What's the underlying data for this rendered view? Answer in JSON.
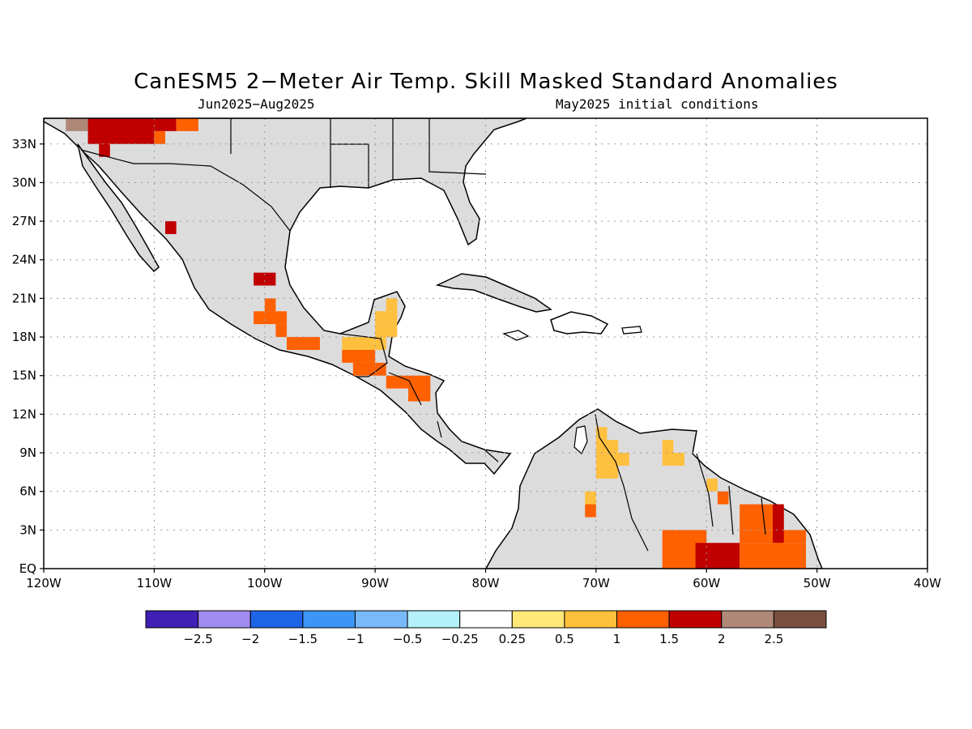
{
  "title": "CanESM5 2−Meter Air Temp. Skill Masked Standard Anomalies",
  "subtitle_left": "Jun2025−Aug2025",
  "subtitle_right": "May2025 initial conditions",
  "map": {
    "lon_range": [
      -120,
      -40
    ],
    "lat_range": [
      0,
      35
    ],
    "lon_ticks": [
      {
        "value": -120,
        "label": "120W"
      },
      {
        "value": -110,
        "label": "110W"
      },
      {
        "value": -100,
        "label": "100W"
      },
      {
        "value": -90,
        "label": "90W"
      },
      {
        "value": -80,
        "label": "80W"
      },
      {
        "value": -70,
        "label": "70W"
      },
      {
        "value": -60,
        "label": "60W"
      },
      {
        "value": -50,
        "label": "50W"
      },
      {
        "value": -40,
        "label": "40W"
      }
    ],
    "lat_ticks": [
      {
        "value": 0,
        "label": "EQ"
      },
      {
        "value": 3,
        "label": "3N"
      },
      {
        "value": 6,
        "label": "6N"
      },
      {
        "value": 9,
        "label": "9N"
      },
      {
        "value": 12,
        "label": "12N"
      },
      {
        "value": 15,
        "label": "15N"
      },
      {
        "value": 18,
        "label": "18N"
      },
      {
        "value": 21,
        "label": "21N"
      },
      {
        "value": 24,
        "label": "24N"
      },
      {
        "value": 27,
        "label": "27N"
      },
      {
        "value": 30,
        "label": "30N"
      },
      {
        "value": 33,
        "label": "33N"
      }
    ],
    "grid": true,
    "land_color": "#dcdcdc",
    "anomaly_cells": [
      {
        "lon": -118,
        "lat": 34,
        "w": 2,
        "h": 1,
        "color": "#b08878"
      },
      {
        "lon": -116,
        "lat": 33,
        "w": 6,
        "h": 2,
        "color": "#c00000"
      },
      {
        "lon": -110,
        "lat": 34,
        "w": 2,
        "h": 1,
        "color": "#c00000"
      },
      {
        "lon": -108,
        "lat": 34,
        "w": 2,
        "h": 1,
        "color": "#ff6000"
      },
      {
        "lon": -110,
        "lat": 33,
        "w": 1,
        "h": 1,
        "color": "#ff6000"
      },
      {
        "lon": -115,
        "lat": 32,
        "w": 1,
        "h": 1,
        "color": "#c00000"
      },
      {
        "lon": -109,
        "lat": 26,
        "w": 1,
        "h": 1,
        "color": "#c00000"
      },
      {
        "lon": -101,
        "lat": 22,
        "w": 2,
        "h": 1,
        "color": "#c00000"
      },
      {
        "lon": -100,
        "lat": 20,
        "w": 1,
        "h": 1,
        "color": "#ff6000"
      },
      {
        "lon": -101,
        "lat": 19,
        "w": 3,
        "h": 1,
        "color": "#ff6000"
      },
      {
        "lon": -99,
        "lat": 18,
        "w": 1,
        "h": 1,
        "color": "#ff6000"
      },
      {
        "lon": -98,
        "lat": 17,
        "w": 3,
        "h": 1,
        "color": "#ff6000"
      },
      {
        "lon": -89,
        "lat": 20,
        "w": 1,
        "h": 1,
        "color": "#ffc040"
      },
      {
        "lon": -90,
        "lat": 19,
        "w": 2,
        "h": 1,
        "color": "#ffc040"
      },
      {
        "lon": -90,
        "lat": 18,
        "w": 2,
        "h": 1,
        "color": "#ffc040"
      },
      {
        "lon": -93,
        "lat": 17,
        "w": 4,
        "h": 1,
        "color": "#ffc040"
      },
      {
        "lon": -93,
        "lat": 16,
        "w": 3,
        "h": 1,
        "color": "#ff6000"
      },
      {
        "lon": -92,
        "lat": 15,
        "w": 3,
        "h": 1,
        "color": "#ff6000"
      },
      {
        "lon": -89,
        "lat": 14,
        "w": 4,
        "h": 1,
        "color": "#ff6000"
      },
      {
        "lon": -87,
        "lat": 13,
        "w": 2,
        "h": 1,
        "color": "#ff6000"
      },
      {
        "lon": -70,
        "lat": 10,
        "w": 1,
        "h": 1,
        "color": "#ffc040"
      },
      {
        "lon": -70,
        "lat": 9,
        "w": 2,
        "h": 1,
        "color": "#ffc040"
      },
      {
        "lon": -70,
        "lat": 8,
        "w": 3,
        "h": 1,
        "color": "#ffc040"
      },
      {
        "lon": -70,
        "lat": 7,
        "w": 2,
        "h": 1,
        "color": "#ffc040"
      },
      {
        "lon": -64,
        "lat": 9,
        "w": 1,
        "h": 1,
        "color": "#ffc040"
      },
      {
        "lon": -64,
        "lat": 8,
        "w": 2,
        "h": 1,
        "color": "#ffc040"
      },
      {
        "lon": -71,
        "lat": 5,
        "w": 1,
        "h": 1,
        "color": "#ffc040"
      },
      {
        "lon": -71,
        "lat": 4,
        "w": 1,
        "h": 1,
        "color": "#ff6000"
      },
      {
        "lon": -60,
        "lat": 6,
        "w": 1,
        "h": 1,
        "color": "#ffc040"
      },
      {
        "lon": -59,
        "lat": 5,
        "w": 1,
        "h": 1,
        "color": "#ff6000"
      },
      {
        "lon": -57,
        "lat": 3,
        "w": 4,
        "h": 2,
        "color": "#ff6000"
      },
      {
        "lon": -57,
        "lat": 2,
        "w": 6,
        "h": 1,
        "color": "#ff6000"
      },
      {
        "lon": -54,
        "lat": 2,
        "w": 1,
        "h": 3,
        "color": "#c00000"
      },
      {
        "lon": -64,
        "lat": 0,
        "w": 4,
        "h": 3,
        "color": "#ff6000"
      },
      {
        "lon": -61,
        "lat": 0,
        "w": 4,
        "h": 2,
        "color": "#c00000"
      },
      {
        "lon": -57,
        "lat": 0,
        "w": 6,
        "h": 2,
        "color": "#ff6000"
      }
    ]
  },
  "colorbar": {
    "colors": [
      "#3f1fb4",
      "#a08cf0",
      "#1e64e6",
      "#3c96f5",
      "#78b9fa",
      "#b4f0fa",
      "#ffffff",
      "#ffe878",
      "#ffc03c",
      "#ff6000",
      "#c00000",
      "#b08878",
      "#7a4e3e"
    ],
    "labels": [
      "−2.5",
      "−2",
      "−1.5",
      "−1",
      "−0.5",
      "−0.25",
      "0.25",
      "0.5",
      "1",
      "1.5",
      "2",
      "2.5"
    ]
  }
}
